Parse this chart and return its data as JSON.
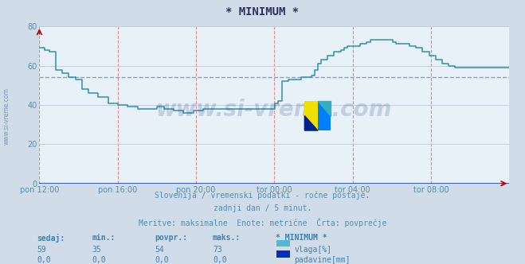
{
  "title": "* MINIMUM *",
  "bg_color": "#d0dce8",
  "plot_bg_color": "#e8f0f8",
  "line_color": "#3090b0",
  "avg_line_color": "#70b0c0",
  "avg_value": 54,
  "ylim": [
    0,
    80
  ],
  "yticks": [
    0,
    20,
    40,
    60,
    80
  ],
  "tick_color": "#5090b0",
  "grid_h_color": "#c0d0e0",
  "grid_v_color": "#e08080",
  "watermark": "www.si-vreme.com",
  "watermark_color": "#1a3a6a",
  "watermark_alpha": 0.18,
  "subtitle1": "Slovenija / vremenski podatki - ročne postaje.",
  "subtitle2": "zadnji dan / 5 minut.",
  "subtitle3": "Meritve: maksimalne  Enote: metrične  Črta: povprečje",
  "subtitle_color": "#5090b8",
  "x_tick_labels": [
    "pon 12:00",
    "pon 16:00",
    "pon 20:00",
    "tor 00:00",
    "tor 04:00",
    "tor 08:00"
  ],
  "x_tick_fractions": [
    0.0,
    0.1667,
    0.3333,
    0.5,
    0.6667,
    0.8333
  ],
  "legend_label1": "vlaga[%]",
  "legend_label2": "padavine[mm]",
  "legend_color1": "#50b8d0",
  "legend_color2": "#0030c0",
  "stats_headers": [
    "sedaj:",
    "min.:",
    "povpr.:",
    "maks.:",
    "* MINIMUM *"
  ],
  "stats_row1": [
    "59",
    "35",
    "54",
    "73"
  ],
  "stats_row2": [
    "0,0",
    "0,0",
    "0,0",
    "0,0"
  ],
  "stats_color": "#4080b0",
  "title_color": "#303060",
  "n_points": 288,
  "red_color": "#c00000",
  "left_label": "www.si-vreme.com",
  "left_label_color": "#6090b0",
  "logo_yellow": "#f0e000",
  "logo_blue": "#0080ff",
  "logo_darkblue": "#002090",
  "logo_cyan": "#30b0c0"
}
